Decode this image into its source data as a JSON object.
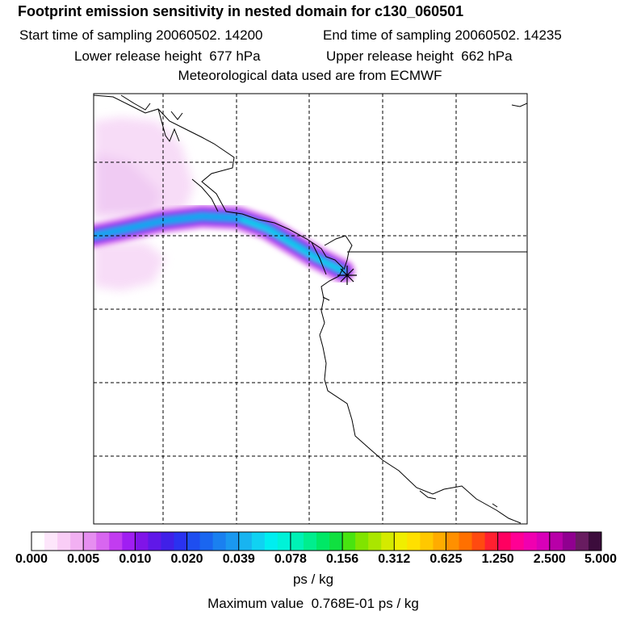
{
  "title": "Footprint emission sensitivity in nested domain for c130_060501",
  "start_sampling": "Start time of sampling 20060502. 14200",
  "end_sampling": "End time of sampling 20060502. 14235",
  "lower_release": "Lower release height  677 hPa",
  "upper_release": "Upper release height  662 hPa",
  "met_data": "Meteorological data used are from ECMWF",
  "colorbar": {
    "tick_labels": [
      "0.000",
      "0.005",
      "0.010",
      "0.020",
      "0.039",
      "0.078",
      "0.156",
      "0.312",
      "0.625",
      "1.250",
      "2.500",
      "5.000"
    ],
    "units": "ps / kg",
    "colors": [
      "#ffffff",
      "#fde6fb",
      "#f9cdf6",
      "#f2b0f2",
      "#e68ef0",
      "#d866f0",
      "#c23cf0",
      "#a01ef2",
      "#8014e8",
      "#6018e8",
      "#4020e8",
      "#2a32f0",
      "#1e4ef0",
      "#1a66f0",
      "#1a80f0",
      "#1a98f0",
      "#18b4f0",
      "#10d2f2",
      "#00eef0",
      "#00f2d8",
      "#00f2b6",
      "#00ee8e",
      "#00e866",
      "#10e040",
      "#48e410",
      "#80e400",
      "#aae600",
      "#d4ea00",
      "#f0ee00",
      "#ffe000",
      "#ffc800",
      "#ffac00",
      "#ff9000",
      "#ff7000",
      "#ff4a10",
      "#ff2030",
      "#ff0060",
      "#ff0094",
      "#f000b0",
      "#d800b8",
      "#b800a8",
      "#900090",
      "#681c60",
      "#3c0c3c"
    ]
  },
  "max_value": "Maximum value  0.768E-01 ps / kg",
  "map": {
    "release_marker": "asterisk"
  }
}
